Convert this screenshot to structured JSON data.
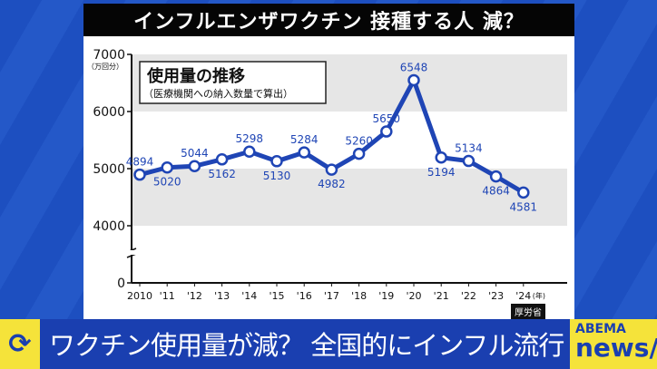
{
  "header": {
    "title": "インフルエンザワクチン 接種する人 減？"
  },
  "chart_data": {
    "type": "line",
    "title": "使用量の推移",
    "subtitle": "（医療機関への納入数量で算出）",
    "ylabel": "（万回分）",
    "xlabel_unit": "(年)",
    "x": [
      "2010",
      "'11",
      "'12",
      "'13",
      "'14",
      "'15",
      "'16",
      "'17",
      "'18",
      "'19",
      "'20",
      "'21",
      "'22",
      "'23",
      "'24"
    ],
    "values": [
      4894,
      5020,
      5044,
      5162,
      5298,
      5130,
      5284,
      4982,
      5260,
      5650,
      6548,
      5194,
      5134,
      4864,
      4581
    ],
    "yticks": [
      0,
      4000,
      5000,
      6000,
      7000
    ],
    "ylim": [
      0,
      7000
    ],
    "axis_break": true,
    "bands": [
      [
        4000,
        5000
      ],
      [
        6000,
        7000
      ]
    ],
    "line_color": "#1f45b5",
    "band_color": "#e6e6e6"
  },
  "source": "厚労省",
  "bottom": {
    "headline": "ワクチン使用量が減？ 全国的にインフル流行",
    "logo_top": "ABEMA",
    "logo_bottom": "news/",
    "icon": "refresh-arrows-icon"
  }
}
